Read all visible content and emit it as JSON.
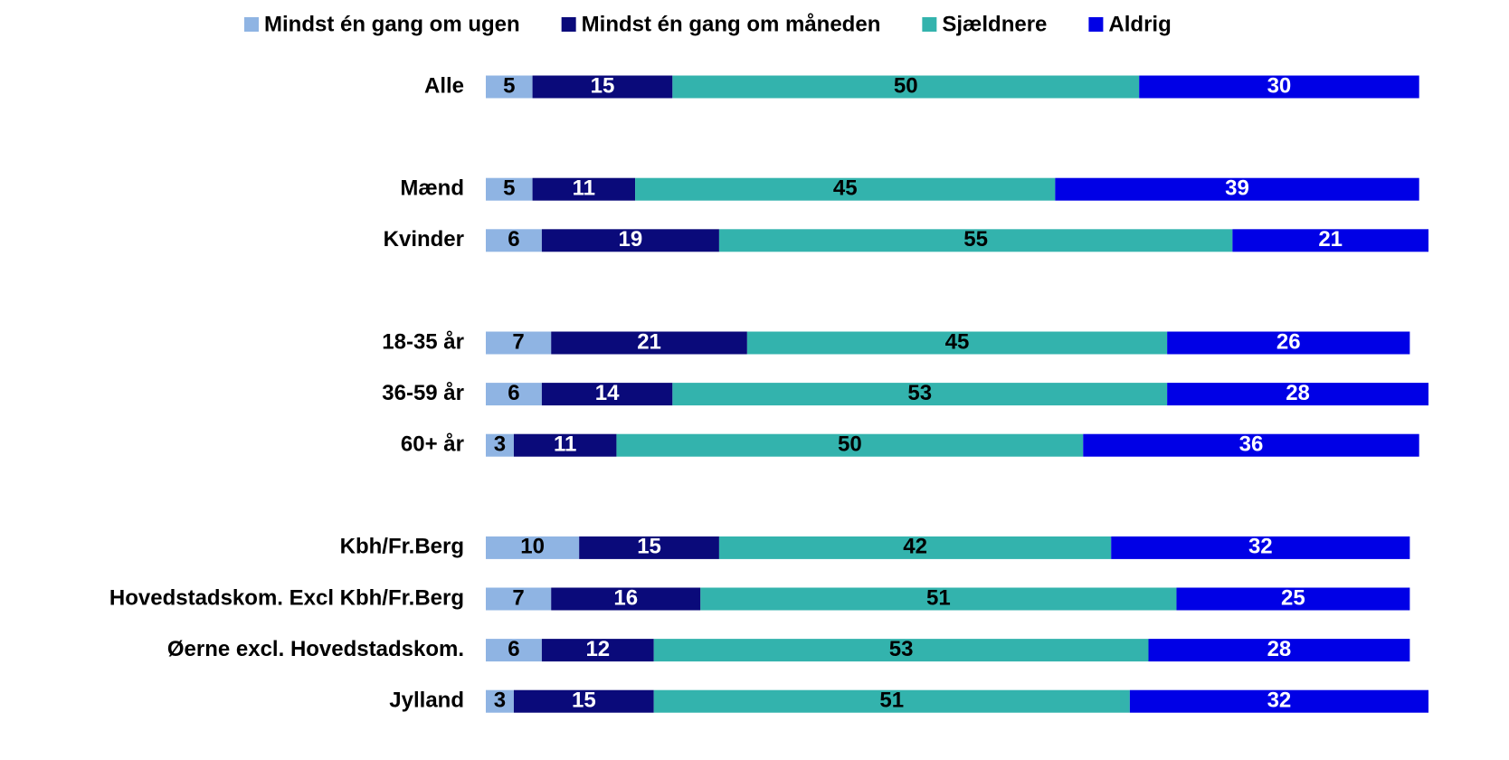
{
  "chart_data": {
    "type": "stacked-bar",
    "categories": [
      "Alle",
      null,
      "Mænd",
      "Kvinder",
      null,
      "18-35 år",
      "36-59 år",
      "60+ år",
      null,
      "Kbh/Fr.Berg",
      "Hovedstadskom. Excl Kbh/Fr.Berg",
      "Øerne excl. Hovedstadskom.",
      "Jylland"
    ],
    "series": [
      {
        "name": "Mindst én gang om ugen",
        "color": "#8fb4e3",
        "values": [
          5,
          null,
          5,
          6,
          null,
          7,
          6,
          3,
          null,
          10,
          7,
          6,
          3
        ]
      },
      {
        "name": "Mindst én gang om måneden",
        "color": "#0a0a7a",
        "values": [
          15,
          null,
          11,
          19,
          null,
          21,
          14,
          11,
          null,
          15,
          16,
          12,
          15
        ]
      },
      {
        "name": "Sjældnere",
        "color": "#33b3ad",
        "values": [
          50,
          null,
          45,
          55,
          null,
          45,
          53,
          50,
          null,
          42,
          51,
          53,
          51
        ]
      },
      {
        "name": "Aldrig",
        "color": "#0000e6",
        "values": [
          30,
          null,
          39,
          21,
          null,
          26,
          28,
          36,
          null,
          32,
          25,
          28,
          32
        ]
      }
    ],
    "legend": "top"
  }
}
